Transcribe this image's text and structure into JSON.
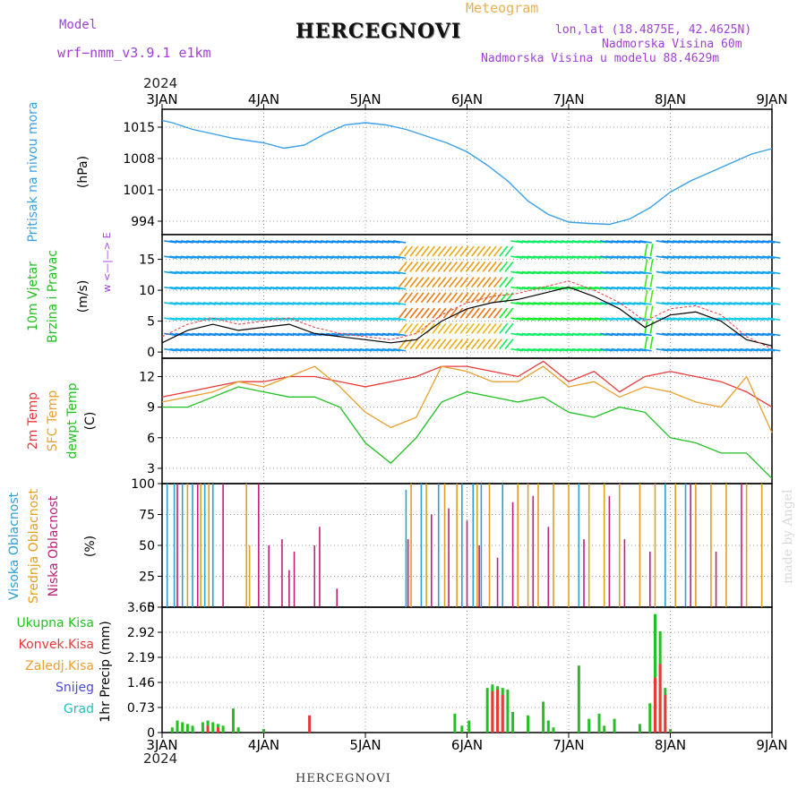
{
  "header": {
    "model_label": "Model",
    "model_name": "wrf−nmm_v3.9.1 e1km",
    "meteogram": "Meteogram",
    "title": "HERCEGNOVI",
    "lonlat": "lon,lat (18.4875E, 42.4625N)",
    "elevation": "Nadmorska Visina 60m",
    "model_elevation": "Nadmorska Visina u modelu 88.4629m",
    "year_top": "2024",
    "year_bottom": "2024",
    "footer": "HERCEGNOVI",
    "watermark": "made by Angel"
  },
  "colors": {
    "pressure": "#3aa0e8",
    "temp": "#e83a3a",
    "sfc": "#e8a030",
    "dew": "#22c022",
    "cl_high": "#2a9fd8",
    "cl_mid": "#e0a020",
    "cl_low": "#c0207a",
    "total_precip": "#22c022",
    "conv_precip": "#e83a3a",
    "snow": "#4a4ad8",
    "hail": "#20c0c0",
    "grid": "#9a9a9a"
  },
  "chart_data": {
    "type": "meteogram",
    "x_ticks": [
      "3JAN",
      "4JAN",
      "5JAN",
      "6JAN",
      "7JAN",
      "8JAN",
      "9JAN"
    ],
    "time_range_days": [
      0,
      6
    ],
    "panels": [
      {
        "id": "pressure",
        "type": "line",
        "ylabels": [
          "Pritisak na nivou mora",
          "(hPa)"
        ],
        "ylim": [
          991,
          1019
        ],
        "yticks": [
          994,
          1001,
          1008,
          1015
        ],
        "series": [
          {
            "x": [
              0,
              0.1,
              0.3,
              0.5,
              0.7,
              1.0,
              1.2,
              1.4,
              1.6,
              1.8,
              2.0,
              2.2,
              2.4,
              2.6,
              2.8,
              3.0,
              3.2,
              3.4,
              3.6,
              3.8,
              4.0,
              4.2,
              4.4,
              4.6,
              4.8,
              5.0,
              5.2,
              5.4,
              5.6,
              5.8,
              6.0
            ],
            "y": [
              1016.5,
              1016,
              1014.5,
              1013.5,
              1012.5,
              1011.5,
              1010.3,
              1011,
              1013.5,
              1015.5,
              1016,
              1015.5,
              1014.5,
              1013,
              1011.5,
              1009.5,
              1006.5,
              1003,
              998.5,
              995.5,
              993.8,
              993.5,
              993.3,
              994.5,
              997,
              1000.5,
              1003,
              1005,
              1007,
              1009,
              1010.2
            ]
          }
        ]
      },
      {
        "id": "wind",
        "type": "line",
        "ylabels": [
          "10m Vjetar",
          "Brzina i Pravac",
          "(m/s)"
        ],
        "compass": "w <—|—> E",
        "ylim": [
          -1,
          19
        ],
        "yticks": [
          0,
          5,
          10,
          15
        ],
        "barb_levels": [
          0.5,
          3,
          5.5,
          8,
          10.5,
          13,
          15.5,
          18
        ],
        "series": [
          {
            "x": [
              0,
              0.25,
              0.5,
              0.75,
              1.0,
              1.25,
              1.5,
              1.75,
              2.0,
              2.25,
              2.5,
              2.75,
              3.0,
              3.25,
              3.5,
              3.75,
              4.0,
              4.25,
              4.5,
              4.75,
              5.0,
              5.25,
              5.5,
              5.75,
              6.0
            ],
            "y": [
              1.5,
              3.5,
              4.5,
              3.5,
              4,
              4.5,
              3,
              2.5,
              2,
              1.5,
              2,
              5,
              7,
              8,
              8.5,
              9.5,
              10.5,
              9,
              7,
              4,
              6,
              6.5,
              5,
              2,
              1
            ]
          },
          {
            "x": [
              0,
              0.25,
              0.5,
              0.75,
              1.0,
              1.25,
              1.5,
              1.75,
              2.0,
              2.25,
              2.5,
              2.75,
              3.0,
              3.25,
              3.5,
              3.75,
              4.0,
              4.25,
              4.5,
              4.75,
              5.0,
              5.25,
              5.5,
              5.75,
              6.0
            ],
            "y": [
              2.5,
              4.5,
              5.5,
              4.5,
              5,
              5.5,
              4,
              3,
              2.5,
              2,
              3,
              6,
              8,
              9,
              9.5,
              10.5,
              11.5,
              10,
              8,
              5,
              7,
              7.5,
              6,
              2.5,
              0.5
            ]
          }
        ]
      },
      {
        "id": "temperature",
        "type": "line",
        "ylabels": [
          "2m Temp",
          "SFC Temp",
          "dewpt Temp",
          "(C)"
        ],
        "ylim": [
          1.5,
          13.8
        ],
        "yticks": [
          3,
          6,
          9,
          12
        ],
        "series": [
          {
            "name": "2m Temp",
            "x": [
              0,
              0.25,
              0.5,
              0.75,
              1.0,
              1.25,
              1.5,
              1.75,
              2.0,
              2.25,
              2.5,
              2.75,
              3.0,
              3.25,
              3.5,
              3.75,
              4.0,
              4.25,
              4.5,
              4.75,
              5.0,
              5.25,
              5.5,
              5.75,
              6.0
            ],
            "y": [
              10,
              10.5,
              11,
              11.5,
              11.5,
              12,
              12,
              11.5,
              11,
              11.5,
              12,
              13,
              13,
              12.5,
              12,
              13.5,
              11.5,
              12.5,
              10.5,
              12,
              12.5,
              12,
              11.5,
              10.5,
              9
            ]
          },
          {
            "name": "SFC Temp",
            "x": [
              0,
              0.25,
              0.5,
              0.75,
              1.0,
              1.25,
              1.5,
              1.75,
              2.0,
              2.25,
              2.5,
              2.75,
              3.0,
              3.25,
              3.5,
              3.75,
              4.0,
              4.25,
              4.5,
              4.75,
              5.0,
              5.25,
              5.5,
              5.75,
              6.0
            ],
            "y": [
              9.5,
              10,
              10.5,
              11.5,
              11,
              12,
              13,
              11,
              8.5,
              7,
              8,
              13,
              12.5,
              11.5,
              11.5,
              13,
              11,
              11.5,
              10,
              11,
              10.5,
              9.5,
              9,
              12,
              6.5
            ]
          },
          {
            "name": "dewpt Temp",
            "x": [
              0,
              0.25,
              0.5,
              0.75,
              1.0,
              1.25,
              1.5,
              1.75,
              2.0,
              2.25,
              2.5,
              2.75,
              3.0,
              3.25,
              3.5,
              3.75,
              4.0,
              4.25,
              4.5,
              4.75,
              5.0,
              5.25,
              5.5,
              5.75,
              6.0
            ],
            "y": [
              9,
              9,
              10,
              11,
              10.5,
              10,
              10,
              9,
              5.5,
              3.5,
              6,
              9.5,
              10.5,
              10,
              9.5,
              10,
              8.5,
              8,
              9,
              8.5,
              6,
              5.5,
              4.5,
              4.5,
              2
            ]
          }
        ]
      },
      {
        "id": "cloud",
        "type": "bar",
        "ylabels": [
          "Visoka Oblacnost",
          "Srednja Oblacnost",
          "Niska Oblacnost",
          "(%)"
        ],
        "ylim": [
          0,
          100
        ],
        "yticks": [
          0,
          25,
          50,
          75,
          100
        ],
        "series": [
          {
            "name": "Visoka Oblacnost",
            "x": [
              0.05,
              0.12,
              0.2,
              0.3,
              0.42,
              0.5,
              2.4,
              2.55,
              2.72,
              2.95,
              3.06,
              3.14,
              3.35,
              3.5,
              4.1,
              4.95,
              5.15
            ],
            "y": [
              100,
              100,
              100,
              100,
              100,
              100,
              95,
              100,
              100,
              100,
              100,
              100,
              100,
              100,
              100,
              100,
              100
            ]
          },
          {
            "name": "Srednja Oblacnost",
            "x": [
              0.25,
              0.38,
              0.46,
              0.83,
              0.86,
              2.45,
              2.6,
              2.78,
              2.9,
              3.1,
              3.22,
              3.5,
              3.6,
              3.7,
              3.85,
              4.0,
              4.2,
              4.35,
              4.5,
              4.7,
              4.85,
              5.05,
              5.25,
              5.4,
              5.55,
              5.75,
              5.9
            ],
            "y": [
              100,
              100,
              100,
              100,
              50,
              100,
              100,
              100,
              100,
              100,
              100,
              100,
              100,
              100,
              100,
              100,
              100,
              100,
              100,
              100,
              100,
              100,
              100,
              100,
              100,
              100,
              100
            ]
          },
          {
            "name": "Niska Oblacnost",
            "x": [
              0.15,
              0.35,
              0.6,
              0.95,
              1.05,
              1.18,
              1.25,
              1.3,
              1.5,
              1.55,
              1.72,
              2.42,
              2.65,
              2.82,
              3.0,
              3.12,
              3.3,
              3.45,
              3.65,
              3.8,
              4.15,
              4.4,
              4.55,
              4.8,
              5.2,
              5.45,
              5.7
            ],
            "y": [
              100,
              100,
              100,
              100,
              50,
              55,
              30,
              45,
              50,
              65,
              15,
              55,
              75,
              80,
              70,
              50,
              40,
              85,
              90,
              65,
              55,
              90,
              55,
              45,
              100,
              45,
              100
            ]
          }
        ]
      },
      {
        "id": "precip",
        "type": "bar",
        "legend": [
          "Ukupna Kisa",
          "Konvek.Kisa",
          "Zaledj.Kisa",
          "Snijeg",
          "Grad"
        ],
        "ylabels": [
          "1hr Precip (mm)"
        ],
        "ylim": [
          0,
          3.65
        ],
        "yticks": [
          0,
          0.73,
          1.46,
          2.19,
          2.92,
          3.65
        ],
        "series": [
          {
            "name": "Ukupna Kisa",
            "x": [
              0.1,
              0.15,
              0.2,
              0.25,
              0.3,
              0.4,
              0.45,
              0.5,
              0.55,
              0.6,
              0.7,
              0.75,
              1.0,
              2.88,
              2.95,
              3.02,
              3.2,
              3.25,
              3.3,
              3.35,
              3.4,
              3.45,
              3.6,
              3.75,
              3.8,
              3.85,
              4.1,
              4.2,
              4.3,
              4.35,
              4.45,
              4.7,
              4.8,
              4.85,
              4.9,
              4.95,
              5.0
            ],
            "y": [
              0.15,
              0.35,
              0.3,
              0.25,
              0.2,
              0.3,
              0.35,
              0.3,
              0.25,
              0.2,
              0.7,
              0.15,
              0.1,
              0.55,
              0.2,
              0.35,
              1.3,
              1.4,
              1.35,
              1.3,
              1.25,
              0.6,
              0.5,
              0.9,
              0.35,
              0.15,
              1.95,
              0.4,
              0.55,
              0.2,
              0.4,
              0.25,
              0.85,
              3.45,
              2.95,
              1.3,
              0.1
            ]
          },
          {
            "name": "Konvek.Kisa",
            "x": [
              0.45,
              0.55,
              1.45,
              3.25,
              3.3,
              3.35,
              4.85,
              4.9,
              4.95
            ],
            "y": [
              0.2,
              0.15,
              0.5,
              1.2,
              1.25,
              1.1,
              1.6,
              2.0,
              1.1
            ]
          }
        ]
      }
    ]
  }
}
